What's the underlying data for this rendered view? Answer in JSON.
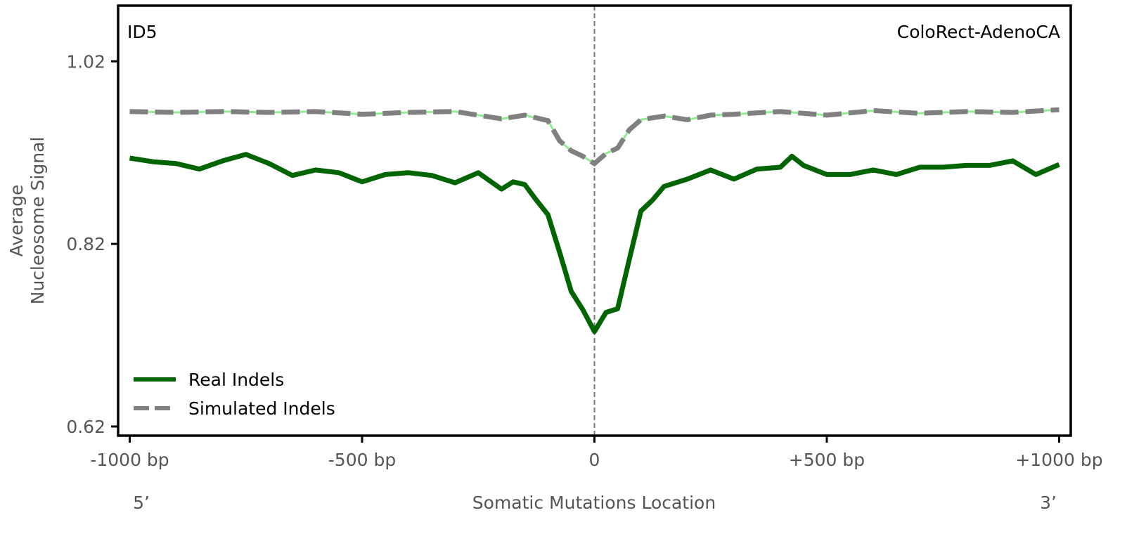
{
  "chart_data": {
    "type": "line",
    "panel_label": "ID5",
    "cancer_type": "ColoRect-AdenoCA",
    "xlabel": "Somatic Mutations Location",
    "ylabel_line1": "Average",
    "ylabel_line2": "Nucleosome Signal",
    "end_labels": {
      "left": "5’",
      "right": "3’"
    },
    "xlim": [
      -1025,
      1025
    ],
    "ylim": [
      0.61,
      1.081
    ],
    "xticks": [
      {
        "value": -1000,
        "label": "-1000 bp"
      },
      {
        "value": -500,
        "label": "-500 bp"
      },
      {
        "value": 0,
        "label": "0"
      },
      {
        "value": 500,
        "label": "+500 bp"
      },
      {
        "value": 1000,
        "label": "+1000 bp"
      }
    ],
    "yticks": [
      {
        "value": 0.62,
        "label": "0.62"
      },
      {
        "value": 0.82,
        "label": "0.82"
      },
      {
        "value": 1.02,
        "label": "1.02"
      }
    ],
    "vline_x": 0,
    "legend_position": "bottom-left",
    "series": [
      {
        "name": "Real Indels",
        "color": "#006400",
        "style": "solid",
        "x": [
          -1000,
          -950,
          -900,
          -850,
          -800,
          -750,
          -700,
          -650,
          -600,
          -550,
          -500,
          -450,
          -400,
          -350,
          -300,
          -250,
          -200,
          -175,
          -150,
          -125,
          -100,
          -75,
          -50,
          -25,
          0,
          25,
          50,
          75,
          100,
          125,
          150,
          200,
          250,
          300,
          350,
          400,
          425,
          450,
          500,
          550,
          600,
          650,
          700,
          750,
          800,
          850,
          900,
          950,
          1000
        ],
        "y": [
          0.914,
          0.91,
          0.908,
          0.902,
          0.911,
          0.918,
          0.908,
          0.895,
          0.901,
          0.898,
          0.888,
          0.896,
          0.898,
          0.895,
          0.887,
          0.898,
          0.88,
          0.888,
          0.885,
          0.868,
          0.852,
          0.811,
          0.768,
          0.748,
          0.724,
          0.745,
          0.749,
          0.803,
          0.856,
          0.868,
          0.883,
          0.891,
          0.901,
          0.891,
          0.902,
          0.904,
          0.916,
          0.906,
          0.896,
          0.896,
          0.901,
          0.896,
          0.904,
          0.904,
          0.906,
          0.906,
          0.911,
          0.896,
          0.907
        ]
      },
      {
        "name": "Simulated Indels",
        "color": "#808080",
        "underlay_color": "#90ee90",
        "style": "dashed",
        "x": [
          -1000,
          -900,
          -800,
          -700,
          -600,
          -500,
          -400,
          -300,
          -250,
          -200,
          -150,
          -100,
          -75,
          -50,
          -25,
          0,
          25,
          50,
          75,
          100,
          150,
          200,
          250,
          300,
          400,
          500,
          600,
          700,
          800,
          900,
          1000
        ],
        "y": [
          0.965,
          0.964,
          0.965,
          0.964,
          0.965,
          0.962,
          0.964,
          0.965,
          0.961,
          0.957,
          0.961,
          0.955,
          0.933,
          0.922,
          0.916,
          0.908,
          0.919,
          0.925,
          0.945,
          0.956,
          0.96,
          0.956,
          0.961,
          0.962,
          0.965,
          0.961,
          0.966,
          0.963,
          0.965,
          0.964,
          0.967
        ]
      }
    ]
  }
}
